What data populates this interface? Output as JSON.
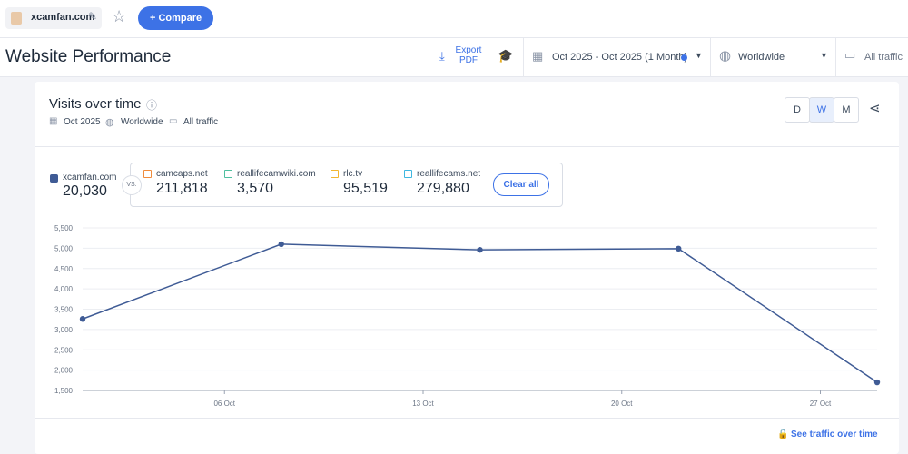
{
  "top_bar": {
    "site": "xcamfan.com",
    "compare_button": "Compare"
  },
  "header": {
    "title": "Website Performance",
    "export_lines": [
      "Export",
      "PDF"
    ],
    "date_range": "Oct 2025 - Oct 2025 (1 Month)",
    "region": "Worldwide",
    "traffic": "All traffic"
  },
  "card": {
    "title": "Visits over time",
    "date": "Oct 2025",
    "region": "Worldwide",
    "traffic": "All traffic",
    "granularity": [
      "D",
      "W",
      "M"
    ],
    "link": "See traffic over time"
  },
  "legend": {
    "main_total": "20,030",
    "vs": "VS.",
    "clear": "Clear all",
    "competitors": [
      {
        "name": "camcaps.net",
        "total": "211,818",
        "color": "#f08c3c"
      },
      {
        "name": "reallifecamwiki.com",
        "total": "3,570",
        "color": "#4fbf9f"
      },
      {
        "name": "rlc.tv",
        "total": "95,519",
        "color": "#f2b630"
      },
      {
        "name": "reallifecams.net",
        "total": "279,880",
        "color": "#3fb7e0"
      }
    ]
  },
  "chart_data": {
    "type": "line",
    "x": [
      1,
      8,
      15,
      22,
      29
    ],
    "xlim": [
      1,
      29
    ],
    "xticks": [
      {
        "value": 6,
        "label": "06 Oct"
      },
      {
        "value": 13,
        "label": "13 Oct"
      },
      {
        "value": 20,
        "label": "20 Oct"
      },
      {
        "value": 27,
        "label": "27 Oct"
      }
    ],
    "ylim": [
      1500,
      5500
    ],
    "yticks": [
      {
        "value": 1500,
        "label": "1,500"
      },
      {
        "value": 2000,
        "label": "2,000"
      },
      {
        "value": 2500,
        "label": "2,500"
      },
      {
        "value": 3000,
        "label": "3,000"
      },
      {
        "value": 3500,
        "label": "3,500"
      },
      {
        "value": 4000,
        "label": "4,000"
      },
      {
        "value": 4500,
        "label": "4,500"
      },
      {
        "value": 5000,
        "label": "5,000"
      },
      {
        "value": 5500,
        "label": "5,500"
      }
    ],
    "grid": true,
    "series": [
      {
        "name": "xcamfan.com",
        "color": "#3f5b95",
        "values": [
          3260,
          5100,
          4960,
          4990,
          1700
        ]
      }
    ]
  }
}
